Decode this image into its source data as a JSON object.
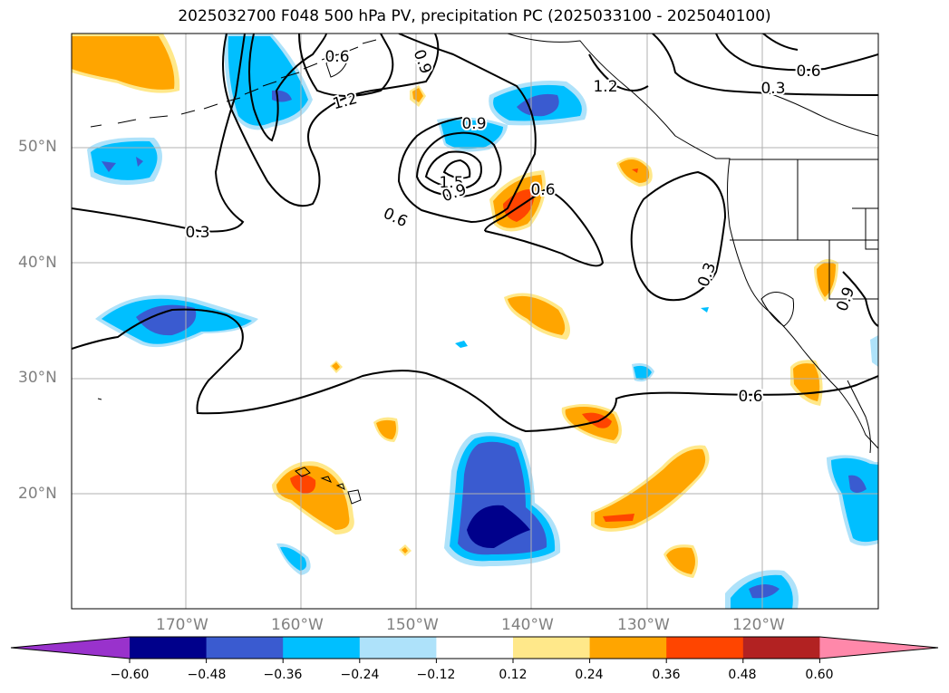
{
  "title": "2025032700 F048 500 hPa PV, precipitation PC (2025033100 - 2025040100)",
  "map": {
    "projection": "PlateCarree",
    "lon_range": [
      "180°",
      "110°W"
    ],
    "lat_range": [
      "10°N",
      "60°N"
    ],
    "gridlines": true,
    "coastlines": true,
    "borders": true,
    "lat_labels": [
      "50°N",
      "40°N",
      "30°N",
      "20°N"
    ],
    "lon_labels": [
      "170°W",
      "160°W",
      "150°W",
      "140°W",
      "130°W",
      "120°W"
    ]
  },
  "contours": {
    "field": "500 hPa PV",
    "color": "#000000",
    "labels": [
      "0.3",
      "0.6",
      "0.9",
      "1.2",
      "1.5",
      "0.9",
      "0.6",
      "0.9",
      "0.6",
      "0.3",
      "0.6",
      "0.3",
      "0.9",
      "1.2",
      "0.6"
    ]
  },
  "colorbar": {
    "ticks": [
      "−0.60",
      "−0.48",
      "−0.36",
      "−0.24",
      "−0.12",
      "0.12",
      "0.24",
      "0.36",
      "0.48",
      "0.60"
    ],
    "colors": [
      "#9932CC",
      "#00008B",
      "#3A5BD0",
      "#00BFFF",
      "#AEE2FA",
      "#FFFFFF",
      "#FFE88A",
      "#FFA500",
      "#FF4500",
      "#B22222",
      "#FF88AA"
    ],
    "extend": "both"
  },
  "chart_data": {
    "type": "heatmap",
    "title": "2025032700 F048 500 hPa PV, precipitation PC (2025033100 - 2025040100)",
    "xlabel": "",
    "ylabel": "",
    "x_ticks": [
      "170°W",
      "160°W",
      "150°W",
      "140°W",
      "130°W",
      "120°W"
    ],
    "y_ticks": [
      "50°N",
      "40°N",
      "30°N",
      "20°N"
    ],
    "colorbar_levels": [
      -0.6,
      -0.48,
      -0.36,
      -0.24,
      -0.12,
      0.12,
      0.24,
      0.36,
      0.48,
      0.6
    ]
  }
}
